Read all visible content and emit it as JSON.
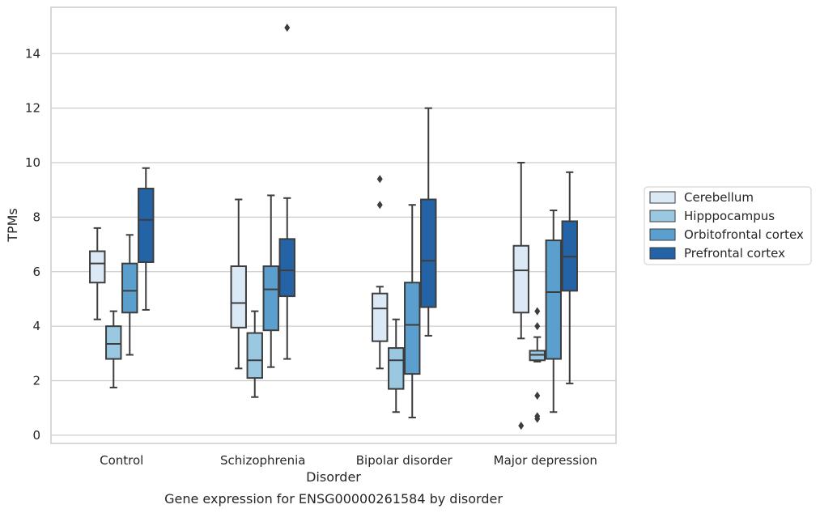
{
  "chart_data": {
    "type": "box",
    "xlabel": "Disorder",
    "ylabel": "TPMs",
    "caption": "Gene expression for ENSG00000261584 by disorder",
    "categories": [
      "Control",
      "Schizophrenia",
      "Bipolar disorder",
      "Major depression"
    ],
    "ylim": [
      -0.3,
      15.7
    ],
    "yticks": [
      0,
      2,
      4,
      6,
      8,
      10,
      12,
      14
    ],
    "grid": true,
    "legend_position": "right",
    "series": [
      {
        "name": "Cerebellum",
        "color": "#dbe9f6",
        "boxes": [
          {
            "whisker_low": 4.25,
            "q1": 5.6,
            "median": 6.3,
            "q3": 6.75,
            "whisker_high": 7.6,
            "outliers": []
          },
          {
            "whisker_low": 2.45,
            "q1": 3.95,
            "median": 4.85,
            "q3": 6.2,
            "whisker_high": 8.65,
            "outliers": []
          },
          {
            "whisker_low": 2.45,
            "q1": 3.45,
            "median": 4.65,
            "q3": 5.2,
            "whisker_high": 5.45,
            "outliers": [
              8.45,
              9.4
            ]
          },
          {
            "whisker_low": 3.55,
            "q1": 4.5,
            "median": 6.05,
            "q3": 6.95,
            "whisker_high": 10.0,
            "outliers": [
              0.35
            ]
          }
        ]
      },
      {
        "name": "Hipppocampus",
        "color": "#9ac8e0",
        "boxes": [
          {
            "whisker_low": 1.75,
            "q1": 2.8,
            "median": 3.35,
            "q3": 4.0,
            "whisker_high": 4.55,
            "outliers": []
          },
          {
            "whisker_low": 1.4,
            "q1": 2.1,
            "median": 2.75,
            "q3": 3.75,
            "whisker_high": 4.55,
            "outliers": []
          },
          {
            "whisker_low": 0.85,
            "q1": 1.7,
            "median": 2.75,
            "q3": 3.2,
            "whisker_high": 4.25,
            "outliers": []
          },
          {
            "whisker_low": 2.7,
            "q1": 2.75,
            "median": 2.95,
            "q3": 3.1,
            "whisker_high": 3.6,
            "outliers": [
              0.6,
              0.7,
              1.45,
              4.0,
              4.55
            ]
          }
        ]
      },
      {
        "name": "Orbitofrontal cortex",
        "color": "#5a9fcd",
        "boxes": [
          {
            "whisker_low": 2.95,
            "q1": 4.5,
            "median": 5.3,
            "q3": 6.3,
            "whisker_high": 7.35,
            "outliers": []
          },
          {
            "whisker_low": 2.5,
            "q1": 3.85,
            "median": 5.35,
            "q3": 6.2,
            "whisker_high": 8.8,
            "outliers": []
          },
          {
            "whisker_low": 0.65,
            "q1": 2.25,
            "median": 4.05,
            "q3": 5.6,
            "whisker_high": 8.45,
            "outliers": []
          },
          {
            "whisker_low": 0.85,
            "q1": 2.8,
            "median": 5.25,
            "q3": 7.15,
            "whisker_high": 8.25,
            "outliers": []
          }
        ]
      },
      {
        "name": "Prefrontal cortex",
        "color": "#2563a7",
        "boxes": [
          {
            "whisker_low": 4.6,
            "q1": 6.35,
            "median": 7.9,
            "q3": 9.05,
            "whisker_high": 9.8,
            "outliers": []
          },
          {
            "whisker_low": 2.8,
            "q1": 5.1,
            "median": 6.05,
            "q3": 7.2,
            "whisker_high": 8.7,
            "outliers": [
              14.95
            ]
          },
          {
            "whisker_low": 3.65,
            "q1": 4.7,
            "median": 6.4,
            "q3": 8.65,
            "whisker_high": 12.0,
            "outliers": []
          },
          {
            "whisker_low": 1.9,
            "q1": 5.3,
            "median": 6.55,
            "q3": 7.85,
            "whisker_high": 9.65,
            "outliers": []
          }
        ]
      }
    ]
  },
  "style": {
    "grid_color": "#cccccc",
    "frame_color": "#cccccc",
    "line_color": "#3d3d3d",
    "text_color": "#262626"
  }
}
